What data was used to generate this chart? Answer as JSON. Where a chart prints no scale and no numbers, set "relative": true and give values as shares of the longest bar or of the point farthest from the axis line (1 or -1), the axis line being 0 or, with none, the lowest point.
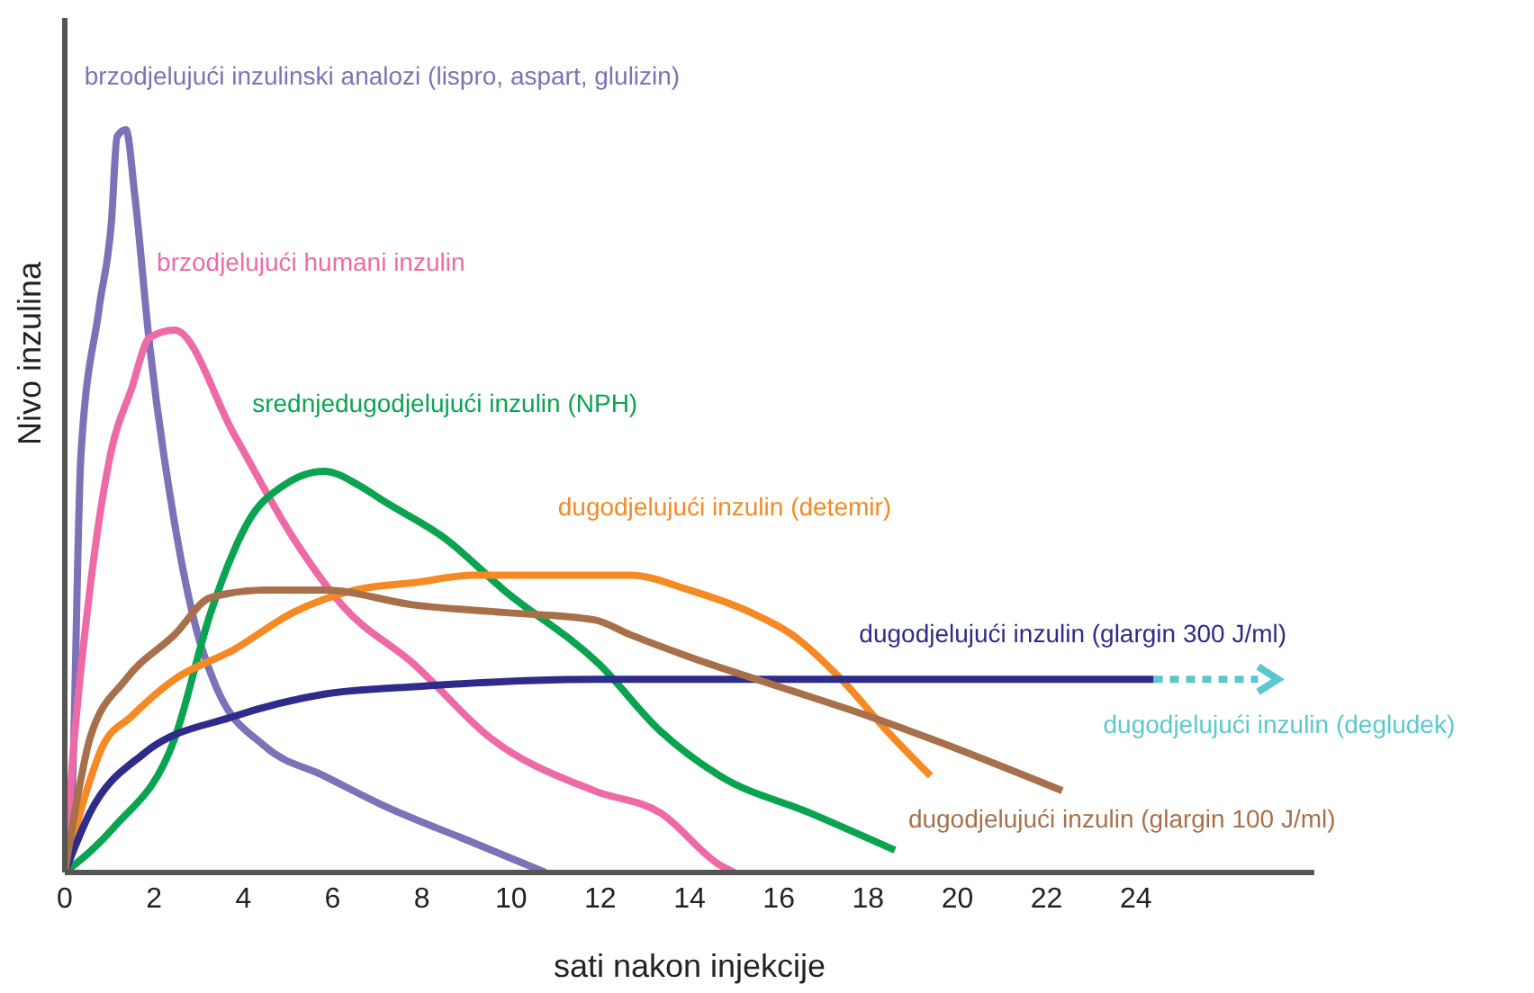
{
  "chart_data": {
    "type": "line",
    "relative": true,
    "xlabel": "sati nakon injekcije",
    "ylabel": "Nivo inzulina",
    "xlim": [
      0,
      28
    ],
    "xticks": [
      0,
      2,
      4,
      6,
      8,
      10,
      12,
      14,
      16,
      18,
      20,
      22,
      24
    ],
    "grid": false,
    "legend": false,
    "tick_labels": "x",
    "annotations": [
      "dugodjelujući inzulin (degludek)"
    ],
    "series": [
      {
        "name": "brzodjelujući inzulinski analozi (lispro, aspart, glulizin)",
        "color": "#7b72b8",
        "x": [
          0,
          0.16,
          0.36,
          0.77,
          1.05,
          1.17,
          1.37,
          1.57,
          1.9,
          2.46,
          2.98,
          3.39,
          4.48,
          5.81,
          7.14,
          9.16,
          10.77
        ],
        "values": [
          0,
          0.1,
          0.56,
          0.76,
          0.88,
          0.99,
          1,
          0.91,
          0.71,
          0.47,
          0.32,
          0.25,
          0.17,
          0.13,
          0.09,
          0.04,
          0
        ]
      },
      {
        "name": "brzodjelujući humani inzulin",
        "color": "#ee6aa7",
        "x": [
          0,
          0.16,
          0.56,
          1.05,
          1.49,
          1.9,
          2.46,
          3.79,
          5.12,
          6.21,
          7.83,
          9.56,
          11.86,
          13.35,
          14.68,
          15
        ],
        "values": [
          0,
          0.14,
          0.38,
          0.57,
          0.65,
          0.72,
          0.73,
          0.59,
          0.45,
          0.36,
          0.28,
          0.18,
          0.11,
          0.08,
          0.01,
          0
        ]
      },
      {
        "name": "srednjedugodjelujući inzulin (NPH)",
        "color": "#0aa451",
        "x": [
          0,
          1.09,
          2.46,
          3.27,
          4.19,
          4.88,
          5.81,
          6.62,
          7.14,
          8.51,
          9.84,
          11.98,
          13.35,
          14.68,
          16.7,
          18.6
        ],
        "values": [
          0,
          0.06,
          0.18,
          0.35,
          0.48,
          0.52,
          0.54,
          0.52,
          0.5,
          0.45,
          0.38,
          0.28,
          0.19,
          0.13,
          0.08,
          0.03
        ]
      },
      {
        "name": "dugodjelujući inzulin (detemir)",
        "color": "#f58a24",
        "x": [
          0,
          0.44,
          0.85,
          1.49,
          2.46,
          3.79,
          5.12,
          6.49,
          7.83,
          9.16,
          10.53,
          11.86,
          12.67,
          14,
          15.37,
          16.3,
          17.4,
          18.43,
          19.4
        ],
        "values": [
          0,
          0.1,
          0.17,
          0.21,
          0.26,
          0.3,
          0.35,
          0.38,
          0.39,
          0.4,
          0.4,
          0.4,
          0.4,
          0.38,
          0.35,
          0.32,
          0.26,
          0.19,
          0.13
        ]
      },
      {
        "name": "dugodjelujući inzulin (glargin 300 J/ml)",
        "color": "#2e2b8a",
        "x": [
          0,
          0.56,
          1.77,
          3.79,
          5.81,
          7.83,
          11.86,
          24.4
        ],
        "values": [
          0,
          0.08,
          0.16,
          0.21,
          0.24,
          0.25,
          0.26,
          0.26
        ]
      },
      {
        "name": "dugodjelujući inzulin (glargin 100 J/ml)",
        "color": "#a8704a",
        "x": [
          0,
          0.28,
          0.56,
          1.37,
          2.46,
          3.27,
          4.48,
          5.81,
          7.83,
          9.84,
          11.86,
          12.67,
          14,
          16.01,
          18.03,
          19.4,
          22.35
        ],
        "values": [
          0,
          0.1,
          0.18,
          0.26,
          0.32,
          0.37,
          0.38,
          0.38,
          0.36,
          0.35,
          0.34,
          0.32,
          0.29,
          0.25,
          0.21,
          0.18,
          0.11
        ]
      }
    ]
  }
}
